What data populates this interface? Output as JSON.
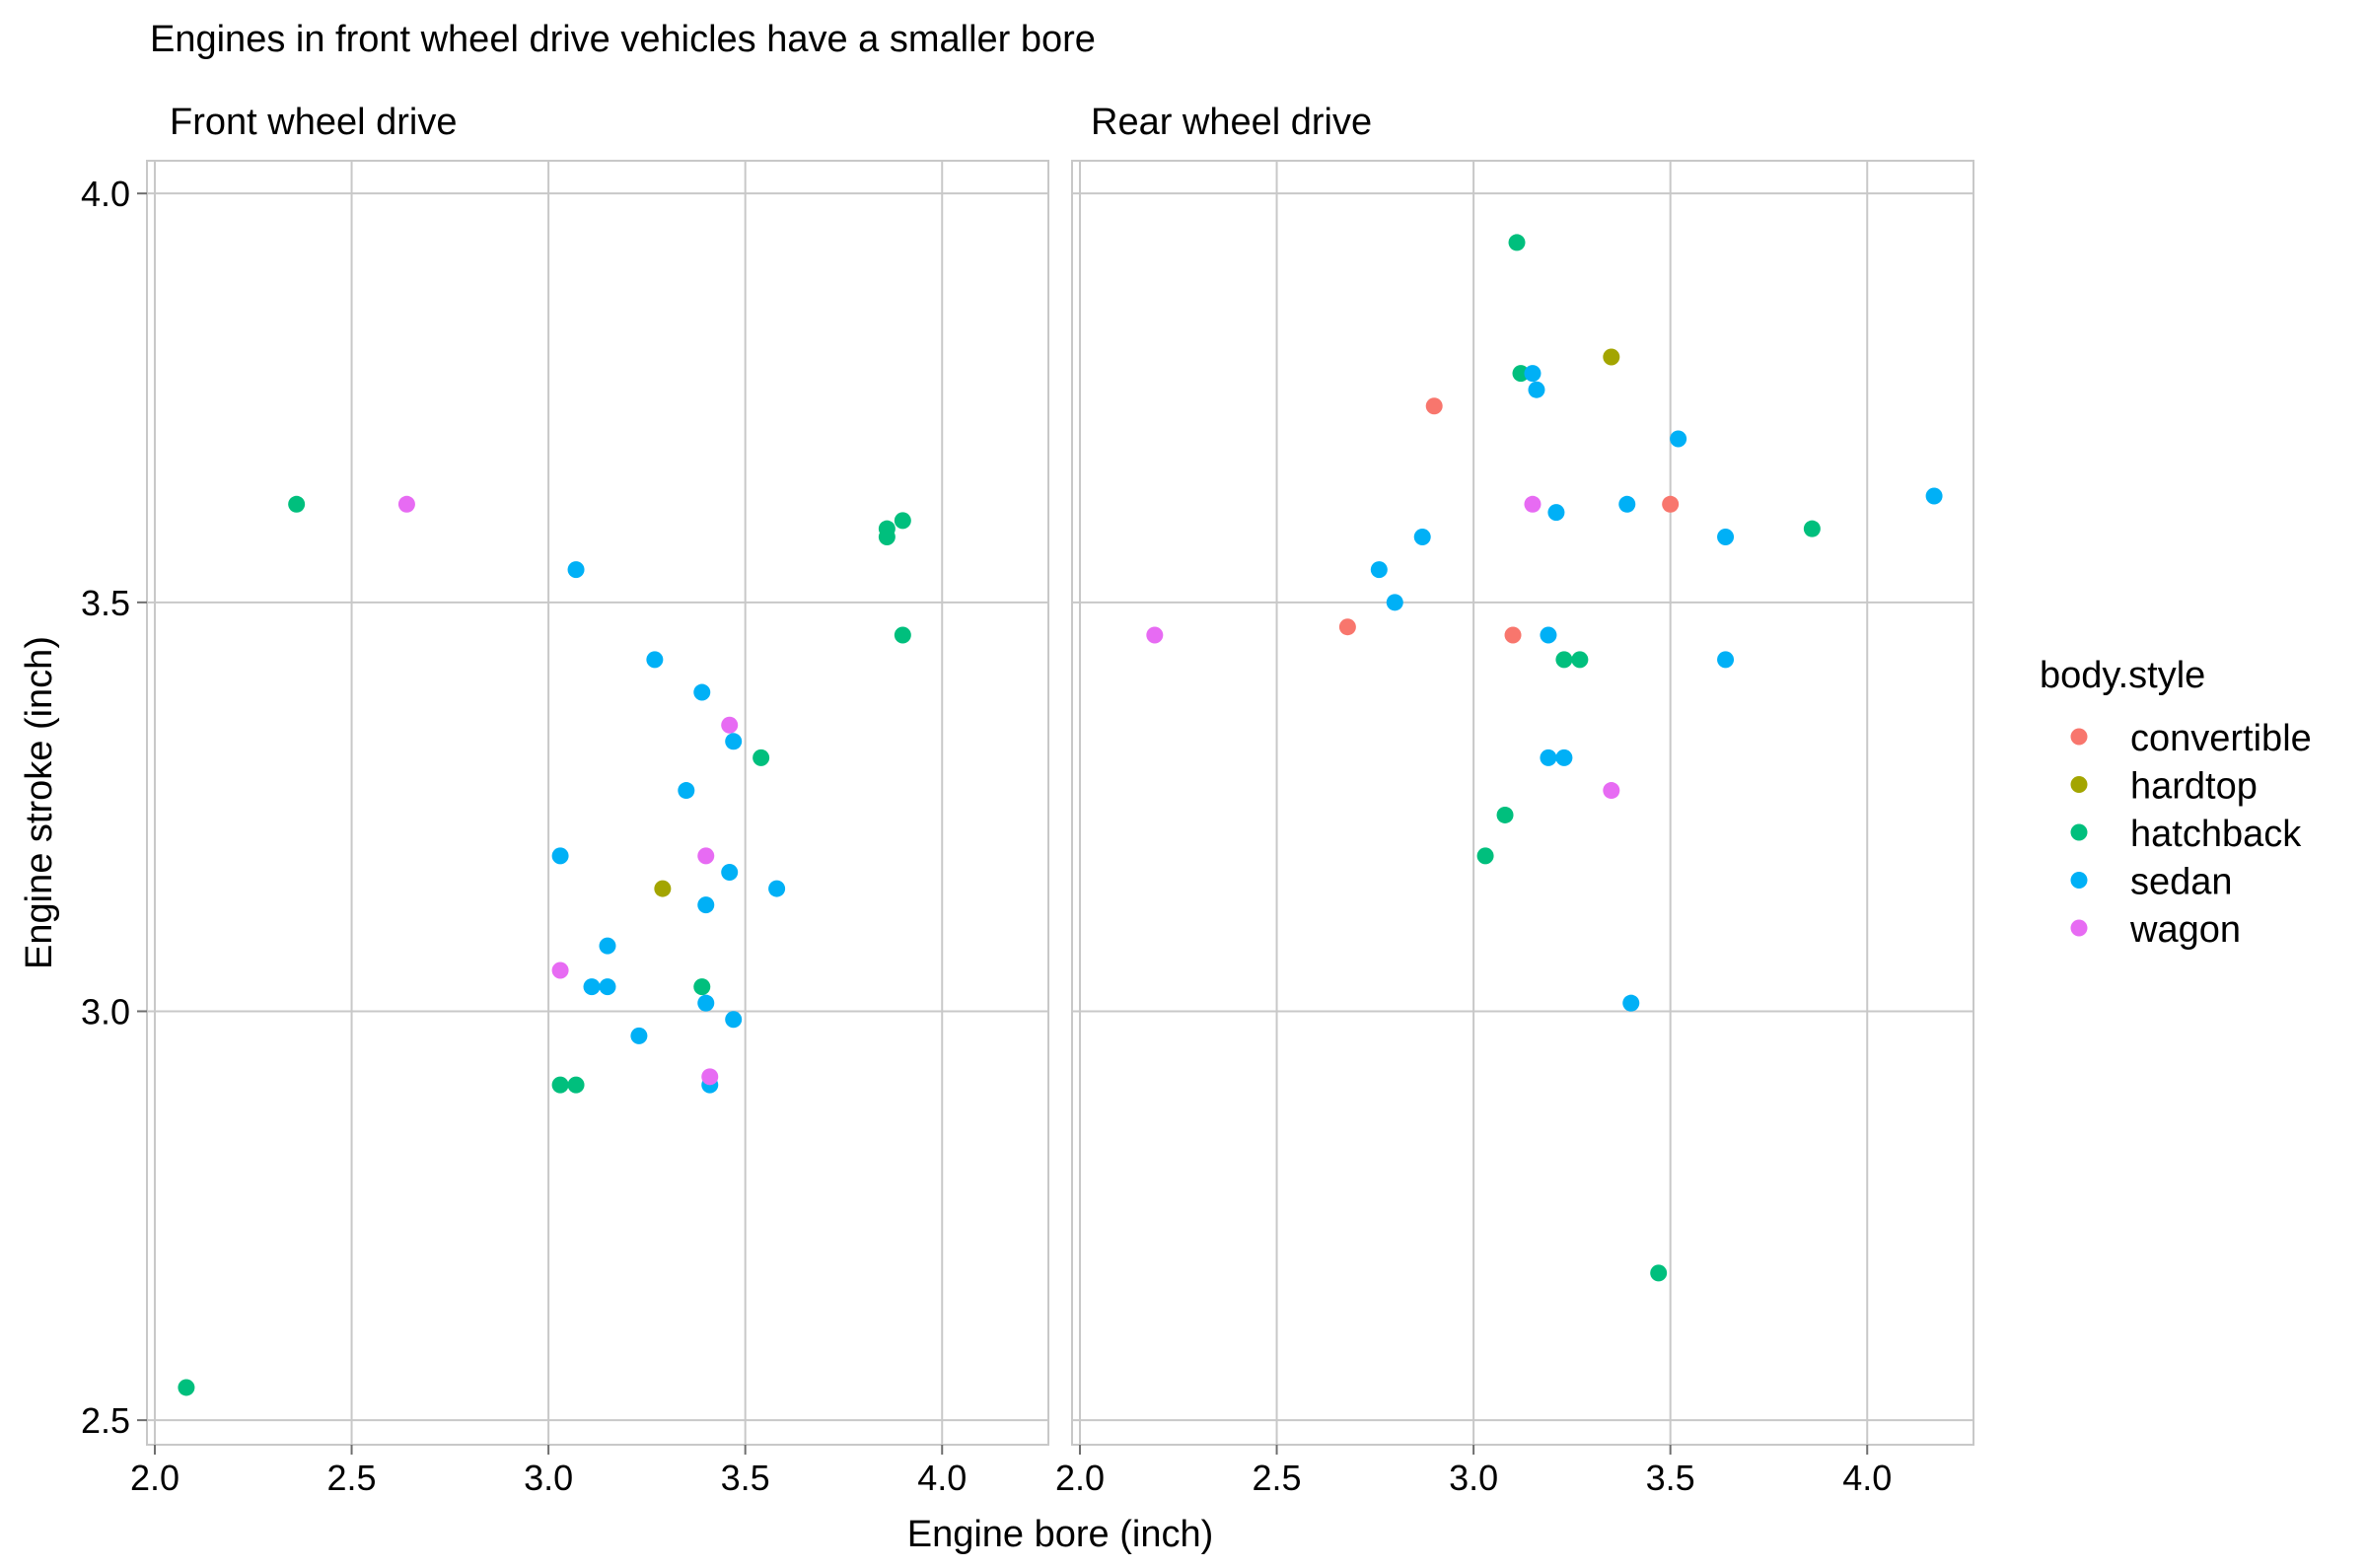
{
  "chart_data": {
    "type": "scatter",
    "title": "Engines in front wheel drive vehicles have a smaller bore",
    "xlabel": "Engine bore (inch)",
    "ylabel": "Engine stroke (inch)",
    "xlim": [
      1.98,
      4.27
    ],
    "ylim": [
      2.47,
      4.04
    ],
    "x_ticks": [
      "2.0",
      "2.5",
      "3.0",
      "3.5",
      "4.0"
    ],
    "y_ticks": [
      "2.5",
      "3.0",
      "3.5",
      "4.0"
    ],
    "grid": true,
    "legend": {
      "title": "body.style",
      "position": "right",
      "entries": [
        {
          "key": "convertible",
          "label": "convertible",
          "color": "#F8766D"
        },
        {
          "key": "hardtop",
          "label": "hardtop",
          "color": "#A3A500"
        },
        {
          "key": "hatchback",
          "label": "hatchback",
          "color": "#00BF7D"
        },
        {
          "key": "sedan",
          "label": "sedan",
          "color": "#00B0F6"
        },
        {
          "key": "wagon",
          "label": "wagon",
          "color": "#E76BF3"
        }
      ]
    },
    "panels": [
      {
        "name": "Front wheel drive",
        "points": [
          {
            "x": 2.36,
            "y": 3.62,
            "series": "hatchback"
          },
          {
            "x": 2.64,
            "y": 3.62,
            "series": "wagon"
          },
          {
            "x": 3.07,
            "y": 3.54,
            "series": "sedan"
          },
          {
            "x": 3.86,
            "y": 3.59,
            "series": "hatchback"
          },
          {
            "x": 3.86,
            "y": 3.58,
            "series": "hatchback"
          },
          {
            "x": 3.9,
            "y": 3.6,
            "series": "hatchback"
          },
          {
            "x": 3.9,
            "y": 3.46,
            "series": "hatchback"
          },
          {
            "x": 3.27,
            "y": 3.43,
            "series": "sedan"
          },
          {
            "x": 3.39,
            "y": 3.39,
            "series": "sedan"
          },
          {
            "x": 3.46,
            "y": 3.35,
            "series": "wagon"
          },
          {
            "x": 3.47,
            "y": 3.33,
            "series": "sedan"
          },
          {
            "x": 3.54,
            "y": 3.31,
            "series": "hatchback"
          },
          {
            "x": 3.35,
            "y": 3.27,
            "series": "sedan"
          },
          {
            "x": 3.03,
            "y": 3.19,
            "series": "sedan"
          },
          {
            "x": 3.4,
            "y": 3.19,
            "series": "wagon"
          },
          {
            "x": 3.46,
            "y": 3.17,
            "series": "sedan"
          },
          {
            "x": 3.29,
            "y": 3.15,
            "series": "hardtop"
          },
          {
            "x": 3.58,
            "y": 3.15,
            "series": "sedan"
          },
          {
            "x": 3.4,
            "y": 3.13,
            "series": "sedan"
          },
          {
            "x": 3.15,
            "y": 3.08,
            "series": "sedan"
          },
          {
            "x": 3.03,
            "y": 3.05,
            "series": "wagon"
          },
          {
            "x": 3.11,
            "y": 3.03,
            "series": "sedan"
          },
          {
            "x": 3.15,
            "y": 3.03,
            "series": "sedan"
          },
          {
            "x": 3.39,
            "y": 3.03,
            "series": "hatchback"
          },
          {
            "x": 3.4,
            "y": 3.01,
            "series": "sedan"
          },
          {
            "x": 3.47,
            "y": 2.99,
            "series": "sedan"
          },
          {
            "x": 3.23,
            "y": 2.97,
            "series": "sedan"
          },
          {
            "x": 3.03,
            "y": 2.91,
            "series": "hatchback"
          },
          {
            "x": 3.07,
            "y": 2.91,
            "series": "hatchback"
          },
          {
            "x": 3.41,
            "y": 2.91,
            "series": "sedan"
          },
          {
            "x": 3.41,
            "y": 2.92,
            "series": "wagon"
          },
          {
            "x": 2.08,
            "y": 2.54,
            "series": "hatchback"
          }
        ]
      },
      {
        "name": "Rear wheel drive",
        "points": [
          {
            "x": 3.11,
            "y": 3.94,
            "series": "hatchback"
          },
          {
            "x": 3.35,
            "y": 3.8,
            "series": "hardtop"
          },
          {
            "x": 3.12,
            "y": 3.78,
            "series": "hatchback"
          },
          {
            "x": 3.15,
            "y": 3.78,
            "series": "sedan"
          },
          {
            "x": 3.16,
            "y": 3.76,
            "series": "sedan"
          },
          {
            "x": 2.9,
            "y": 3.74,
            "series": "convertible"
          },
          {
            "x": 3.52,
            "y": 3.7,
            "series": "sedan"
          },
          {
            "x": 4.17,
            "y": 3.63,
            "series": "sedan"
          },
          {
            "x": 3.15,
            "y": 3.62,
            "series": "wagon"
          },
          {
            "x": 3.39,
            "y": 3.62,
            "series": "sedan"
          },
          {
            "x": 3.5,
            "y": 3.62,
            "series": "convertible"
          },
          {
            "x": 3.21,
            "y": 3.61,
            "series": "sedan"
          },
          {
            "x": 3.86,
            "y": 3.59,
            "series": "hatchback"
          },
          {
            "x": 2.87,
            "y": 3.58,
            "series": "sedan"
          },
          {
            "x": 3.64,
            "y": 3.58,
            "series": "sedan"
          },
          {
            "x": 2.76,
            "y": 3.54,
            "series": "sedan"
          },
          {
            "x": 2.8,
            "y": 3.5,
            "series": "sedan"
          },
          {
            "x": 2.68,
            "y": 3.47,
            "series": "convertible"
          },
          {
            "x": 2.19,
            "y": 3.46,
            "series": "wagon"
          },
          {
            "x": 3.1,
            "y": 3.46,
            "series": "convertible"
          },
          {
            "x": 3.19,
            "y": 3.46,
            "series": "sedan"
          },
          {
            "x": 3.23,
            "y": 3.43,
            "series": "hatchback"
          },
          {
            "x": 3.27,
            "y": 3.43,
            "series": "hatchback"
          },
          {
            "x": 3.64,
            "y": 3.43,
            "series": "sedan"
          },
          {
            "x": 3.19,
            "y": 3.31,
            "series": "sedan"
          },
          {
            "x": 3.23,
            "y": 3.31,
            "series": "sedan"
          },
          {
            "x": 3.35,
            "y": 3.27,
            "series": "wagon"
          },
          {
            "x": 3.08,
            "y": 3.24,
            "series": "hatchback"
          },
          {
            "x": 3.03,
            "y": 3.19,
            "series": "hatchback"
          },
          {
            "x": 3.4,
            "y": 3.01,
            "series": "sedan"
          },
          {
            "x": 3.47,
            "y": 2.68,
            "series": "hatchback"
          }
        ]
      }
    ]
  }
}
